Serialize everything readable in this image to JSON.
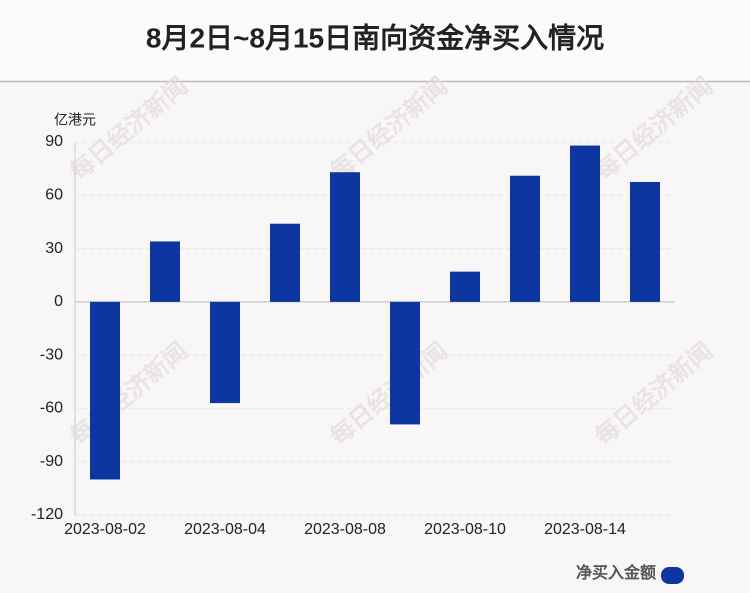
{
  "chart_data": {
    "type": "bar",
    "title": "8月2日~8月15日南向资金净买入情况",
    "y_unit": "亿港元",
    "watermark": "每日经济新闻",
    "categories": [
      "2023-08-02",
      null,
      "2023-08-04",
      null,
      "2023-08-08",
      null,
      "2023-08-10",
      null,
      "2023-08-14",
      null
    ],
    "series": [
      {
        "name": "净买入金额",
        "color": "#0d36a0",
        "values": [
          -100,
          34,
          -57,
          44,
          73,
          -69,
          17,
          71,
          88,
          67.5
        ]
      }
    ],
    "ylim": [
      -120,
      90
    ],
    "yticks": [
      90,
      60,
      30,
      0,
      -30,
      -60,
      -90,
      -120
    ],
    "grid": true,
    "legend": "bottom-right"
  }
}
